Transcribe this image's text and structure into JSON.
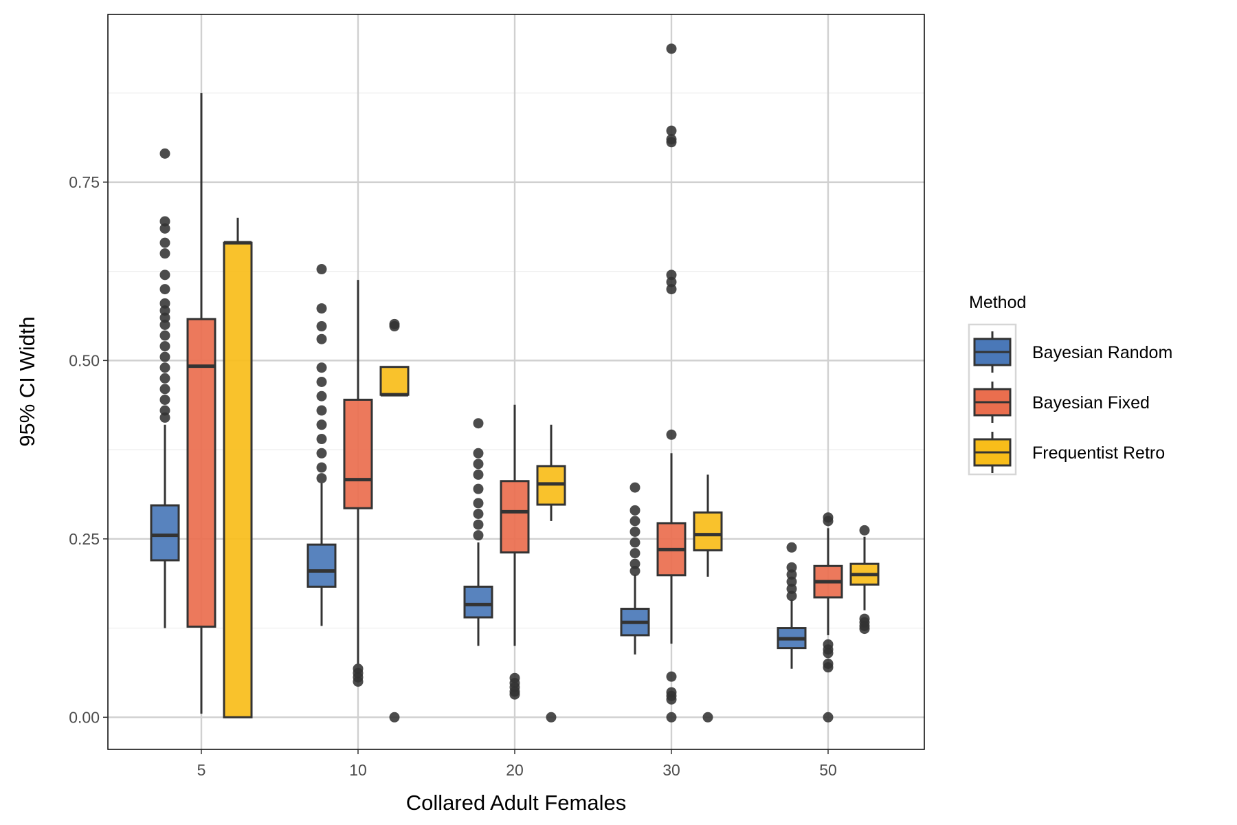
{
  "chart_data": {
    "type": "boxplot",
    "title": "",
    "xlabel": "Collared Adult Females",
    "ylabel": "95% CI Width",
    "categories": [
      "5",
      "10",
      "20",
      "30",
      "50"
    ],
    "ylim": [
      -0.045,
      0.985
    ],
    "yticks": [
      0.0,
      0.25,
      0.5,
      0.75
    ],
    "ytick_labels": [
      "0.00",
      "0.25",
      "0.50",
      "0.75"
    ],
    "grid": true,
    "legend": {
      "title": "Method",
      "placement": "right"
    },
    "colors": {
      "Bayesian Random": "#4a78b8",
      "Bayesian Fixed": "#ea6e4e",
      "Frequentist Retro": "#f8bd1a",
      "edge": "#333333",
      "grid_major": "#d0d0d0",
      "grid_minor": "#ececec"
    },
    "series": [
      {
        "name": "Bayesian Random",
        "boxes": [
          {
            "category": "5",
            "whisker_low": 0.125,
            "q1": 0.22,
            "median": 0.255,
            "q3": 0.297,
            "whisker_high": 0.41,
            "outliers": [
              0.79,
              0.695,
              0.685,
              0.665,
              0.65,
              0.62,
              0.6,
              0.58,
              0.57,
              0.56,
              0.55,
              0.535,
              0.52,
              0.505,
              0.49,
              0.475,
              0.46,
              0.445,
              0.43,
              0.42
            ]
          },
          {
            "category": "10",
            "whisker_low": 0.128,
            "q1": 0.183,
            "median": 0.205,
            "q3": 0.242,
            "whisker_high": 0.328,
            "outliers": [
              0.628,
              0.573,
              0.548,
              0.53,
              0.49,
              0.47,
              0.45,
              0.43,
              0.41,
              0.39,
              0.37,
              0.35,
              0.335
            ]
          },
          {
            "category": "20",
            "whisker_low": 0.1,
            "q1": 0.14,
            "median": 0.158,
            "q3": 0.183,
            "whisker_high": 0.245,
            "outliers": [
              0.412,
              0.37,
              0.355,
              0.34,
              0.32,
              0.3,
              0.285,
              0.27,
              0.255
            ]
          },
          {
            "category": "30",
            "whisker_low": 0.088,
            "q1": 0.115,
            "median": 0.133,
            "q3": 0.152,
            "whisker_high": 0.2,
            "outliers": [
              0.322,
              0.29,
              0.275,
              0.26,
              0.245,
              0.23,
              0.215,
              0.205
            ]
          },
          {
            "category": "50",
            "whisker_low": 0.068,
            "q1": 0.097,
            "median": 0.11,
            "q3": 0.125,
            "whisker_high": 0.165,
            "outliers": [
              0.238,
              0.21,
              0.2,
              0.19,
              0.18,
              0.17
            ]
          }
        ]
      },
      {
        "name": "Bayesian Fixed",
        "boxes": [
          {
            "category": "5",
            "whisker_low": 0.005,
            "q1": 0.127,
            "median": 0.492,
            "q3": 0.558,
            "whisker_high": 0.875,
            "outliers": []
          },
          {
            "category": "10",
            "whisker_low": 0.075,
            "q1": 0.293,
            "median": 0.333,
            "q3": 0.445,
            "whisker_high": 0.613,
            "outliers": [
              0.068,
              0.062,
              0.056,
              0.05
            ]
          },
          {
            "category": "20",
            "whisker_low": 0.1,
            "q1": 0.231,
            "median": 0.288,
            "q3": 0.331,
            "whisker_high": 0.438,
            "outliers": [
              0.055,
              0.048,
              0.042,
              0.036,
              0.032
            ]
          },
          {
            "category": "30",
            "whisker_low": 0.103,
            "q1": 0.199,
            "median": 0.235,
            "q3": 0.272,
            "whisker_high": 0.37,
            "outliers": [
              0.937,
              0.822,
              0.81,
              0.806,
              0.62,
              0.61,
              0.6,
              0.396,
              0.057,
              0.035,
              0.03,
              0.025,
              0.0
            ]
          },
          {
            "category": "50",
            "whisker_low": 0.115,
            "q1": 0.168,
            "median": 0.19,
            "q3": 0.212,
            "whisker_high": 0.265,
            "outliers": [
              0.28,
              0.275,
              0.102,
              0.095,
              0.09,
              0.075,
              0.07,
              0.0
            ]
          }
        ]
      },
      {
        "name": "Frequentist Retro",
        "boxes": [
          {
            "category": "5",
            "whisker_low": 0.0,
            "q1": 0.0,
            "median": 0.665,
            "q3": 0.665,
            "whisker_high": 0.7,
            "outliers": []
          },
          {
            "category": "10",
            "whisker_low": 0.452,
            "q1": 0.452,
            "median": 0.452,
            "q3": 0.491,
            "whisker_high": 0.491,
            "outliers": [
              0.551,
              0.548,
              0.0
            ]
          },
          {
            "category": "20",
            "whisker_low": 0.275,
            "q1": 0.298,
            "median": 0.327,
            "q3": 0.352,
            "whisker_high": 0.41,
            "outliers": [
              0.0
            ]
          },
          {
            "category": "30",
            "whisker_low": 0.197,
            "q1": 0.234,
            "median": 0.256,
            "q3": 0.287,
            "whisker_high": 0.34,
            "outliers": [
              0.0
            ]
          },
          {
            "category": "50",
            "whisker_low": 0.15,
            "q1": 0.186,
            "median": 0.2,
            "q3": 0.215,
            "whisker_high": 0.253,
            "outliers": [
              0.262,
              0.138,
              0.133,
              0.128,
              0.124
            ]
          }
        ]
      }
    ]
  }
}
